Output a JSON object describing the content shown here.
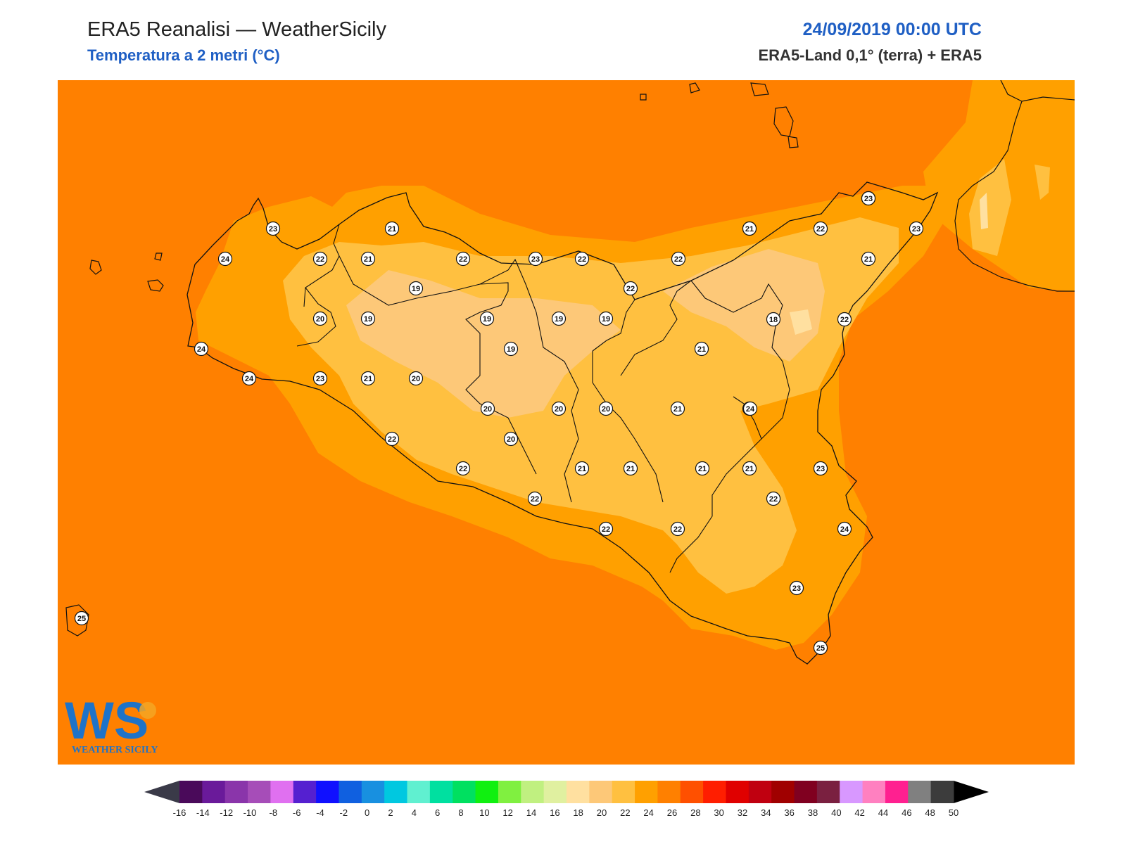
{
  "header": {
    "title": "ERA5 Reanalisi — WeatherSicily",
    "subtitle": "Temperatura a 2 metri (°C)",
    "datetime": "24/09/2019 00:00 UTC",
    "source": "ERA5-Land 0,1° (terra) + ERA5"
  },
  "logo": {
    "letters": "WS",
    "wordmark": "WEATHER SICILY",
    "colors": {
      "blue": "#1e73c8",
      "orange": "#f5a623",
      "green": "#3aa655"
    }
  },
  "map": {
    "background_color": "#ff8000",
    "field_colors": {
      "t24": "#ff8000",
      "t22": "#ffa000",
      "t20": "#ffc040",
      "t18": "#fdc878",
      "t16": "#ffe0a0"
    },
    "station_values": [
      {
        "label": "23"
      },
      {
        "label": "21"
      },
      {
        "label": "24"
      },
      {
        "label": "22"
      },
      {
        "label": "21"
      },
      {
        "label": "22"
      },
      {
        "label": "23"
      },
      {
        "label": "22"
      },
      {
        "label": "19"
      },
      {
        "label": "22"
      },
      {
        "label": "20"
      },
      {
        "label": "19"
      },
      {
        "label": "19"
      },
      {
        "label": "19"
      },
      {
        "label": "19"
      },
      {
        "label": "24"
      },
      {
        "label": "19"
      },
      {
        "label": "24"
      },
      {
        "label": "23"
      },
      {
        "label": "21"
      },
      {
        "label": "20"
      },
      {
        "label": "20"
      },
      {
        "label": "20"
      },
      {
        "label": "20"
      },
      {
        "label": "22"
      },
      {
        "label": "20"
      },
      {
        "label": "22"
      },
      {
        "label": "21"
      },
      {
        "label": "21"
      },
      {
        "label": "22"
      },
      {
        "label": "22"
      },
      {
        "label": "22"
      },
      {
        "label": "21"
      },
      {
        "label": "21"
      },
      {
        "label": "21"
      },
      {
        "label": "22"
      },
      {
        "label": "22"
      },
      {
        "label": "23"
      },
      {
        "label": "25"
      },
      {
        "label": "21"
      },
      {
        "label": "22"
      },
      {
        "label": "23"
      },
      {
        "label": "23"
      },
      {
        "label": "21"
      },
      {
        "label": "23"
      },
      {
        "label": "21"
      },
      {
        "label": "18"
      },
      {
        "label": "22"
      },
      {
        "label": "24"
      },
      {
        "label": "23"
      },
      {
        "label": "22"
      },
      {
        "label": "24"
      },
      {
        "label": "23"
      },
      {
        "label": "25"
      }
    ]
  },
  "colorbar": {
    "ticks": [
      "-16",
      "-14",
      "-12",
      "-10",
      "-8",
      "-6",
      "-4",
      "-2",
      "0",
      "2",
      "4",
      "6",
      "8",
      "10",
      "12",
      "14",
      "16",
      "18",
      "20",
      "22",
      "24",
      "26",
      "28",
      "30",
      "32",
      "34",
      "36",
      "38",
      "40",
      "42",
      "44",
      "46",
      "48",
      "50"
    ],
    "colors": [
      "#4a0a5a",
      "#6a1a9a",
      "#8a35aa",
      "#a64db8",
      "#e070f0",
      "#5520d0",
      "#1010ff",
      "#1060e0",
      "#1890e0",
      "#00c8e0",
      "#60f0d0",
      "#00e0a0",
      "#00e060",
      "#10f010",
      "#80f040",
      "#c0f080",
      "#e0f0a0",
      "#ffe0a0",
      "#fdc878",
      "#ffc040",
      "#ffa000",
      "#ff8000",
      "#ff5000",
      "#ff1e00",
      "#e00000",
      "#c00010",
      "#a00000",
      "#800020",
      "#7a2040",
      "#d898ff",
      "#ff80c0",
      "#ff2090",
      "#808080",
      "#3c3c3c"
    ],
    "under_color": "#3a3a48",
    "over_color": "#000000"
  }
}
